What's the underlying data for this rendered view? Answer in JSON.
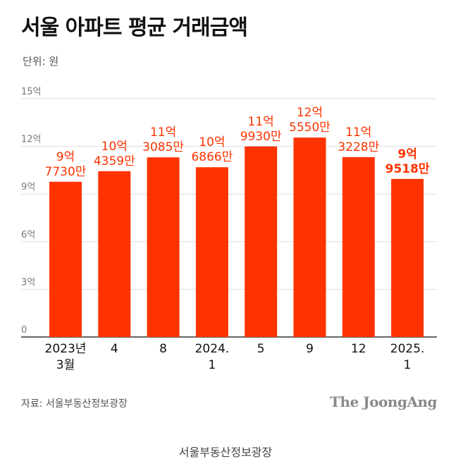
{
  "header": {
    "title": "서울 아파트 평균 거래금액",
    "unit": "단위: 원"
  },
  "footer": {
    "source": "자료: 서울부동산정보광장",
    "logo": "The JoongAng",
    "caption": "서울부동산정보광장"
  },
  "colors": {
    "bar": "#ff3300",
    "label": "#ff3300",
    "grid": "#dddddd",
    "axis": "#333333"
  },
  "chart_data": {
    "type": "bar",
    "title": "서울 아파트 평균 거래금액",
    "ylabel": "단위: 원",
    "ylim": [
      0,
      15
    ],
    "yticks": [
      0,
      3,
      6,
      9,
      12,
      15
    ],
    "ytick_labels": [
      "0",
      "3억",
      "6억",
      "9억",
      "12억",
      "15억"
    ],
    "categories": [
      [
        "2023년",
        "3월"
      ],
      [
        "4"
      ],
      [
        "8"
      ],
      [
        "2024.",
        "1"
      ],
      [
        "5"
      ],
      [
        "9"
      ],
      [
        "12"
      ],
      [
        "2025.",
        "1"
      ]
    ],
    "values": [
      9.773,
      10.4359,
      11.3085,
      10.6866,
      11.993,
      12.555,
      11.3228,
      9.9518
    ],
    "data_labels": [
      [
        "9억",
        "7730만"
      ],
      [
        "10억",
        "4359만"
      ],
      [
        "11억",
        "3085만"
      ],
      [
        "10억",
        "6866만"
      ],
      [
        "11억",
        "9930만"
      ],
      [
        "12억",
        "5550만"
      ],
      [
        "11억",
        "3228만"
      ],
      [
        "9억",
        "9518만"
      ]
    ],
    "highlight_last": true,
    "grid": true
  }
}
